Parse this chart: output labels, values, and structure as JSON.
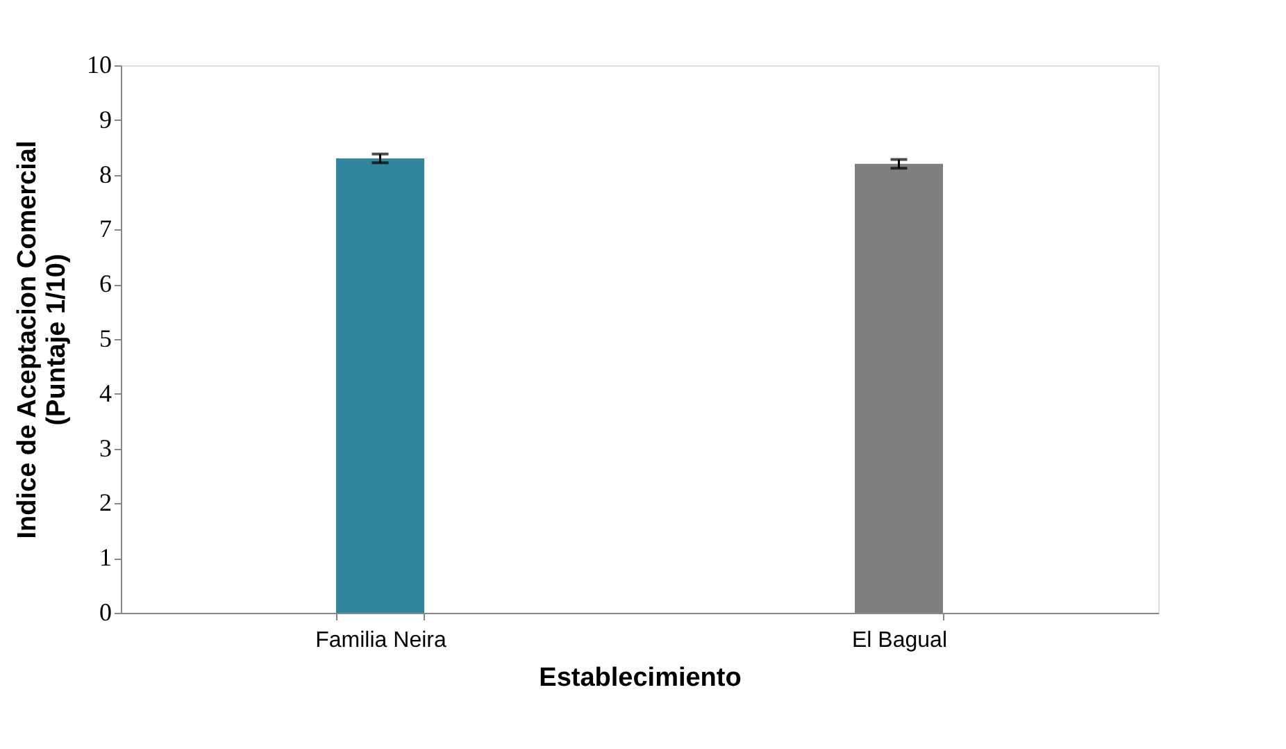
{
  "chart_data": {
    "type": "bar",
    "xlabel": "Establecimiento",
    "ylabel": "Indice de Aceptacion Comercial\n(Puntaje 1/10)",
    "categories": [
      "Familia Neira",
      "El Bagual"
    ],
    "values": [
      8.3,
      8.2
    ],
    "colors": [
      "#31859c",
      "#7f7f7f"
    ],
    "errors": [
      0.08,
      0.08
    ],
    "ylim": [
      0,
      10
    ],
    "yticks": [
      0,
      1,
      2,
      3,
      4,
      5,
      6,
      7,
      8,
      9,
      10
    ],
    "grid": false
  }
}
